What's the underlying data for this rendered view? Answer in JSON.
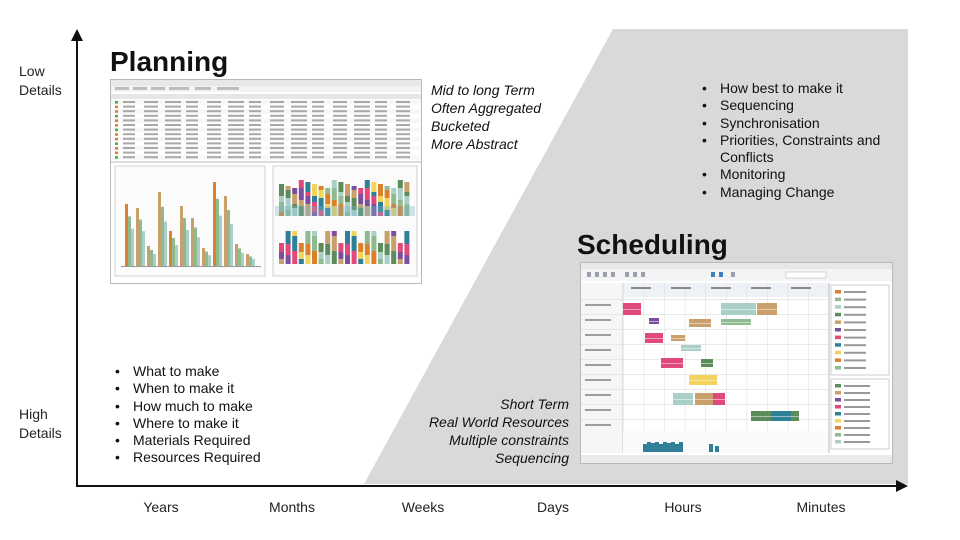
{
  "y_axis": {
    "top_label": [
      "Low",
      "Details"
    ],
    "bottom_label": [
      "High",
      "Details"
    ]
  },
  "x_axis": {
    "ticks": [
      "Years",
      "Months",
      "Weeks",
      "Days",
      "Hours",
      "Minutes"
    ]
  },
  "planning": {
    "title": "Planning",
    "characteristics": [
      "Mid to long Term",
      "Often Aggregated",
      "Bucketed",
      "More Abstract"
    ],
    "questions": [
      "What to make",
      "When to make it",
      "How much to make",
      "Where to make it",
      "Materials Required",
      "Resources Required"
    ]
  },
  "scheduling": {
    "title": "Scheduling",
    "characteristics": [
      "Short Term",
      "Real World Resources",
      "Multiple constraints",
      "Sequencing"
    ],
    "questions": [
      "How best to make it",
      "Sequencing",
      "Synchronisation",
      "Priorities, Constraints and Conflicts",
      "Monitoring",
      "Managing Change"
    ]
  },
  "colors": {
    "scheduling_region": "#d9d9d9",
    "axis": "#111111",
    "bar_palette": [
      "#d9822b",
      "#8fb98f",
      "#a9cfc6",
      "#5b8c5a",
      "#c9a06b",
      "#7b4f9e",
      "#e04a7a",
      "#2f7f99",
      "#f2d45c"
    ]
  }
}
